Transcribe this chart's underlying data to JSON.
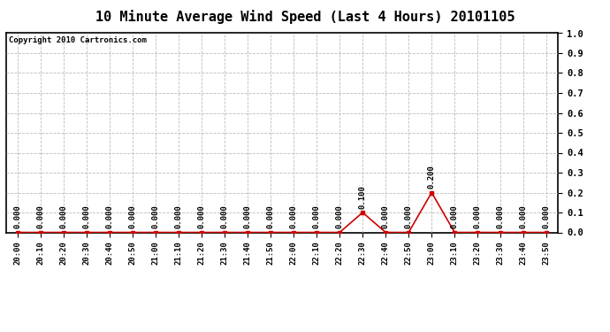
{
  "title": "10 Minute Average Wind Speed (Last 4 Hours) 20101105",
  "copyright_text": "Copyright 2010 Cartronics.com",
  "x_labels": [
    "20:00",
    "20:10",
    "20:20",
    "20:30",
    "20:40",
    "20:50",
    "21:00",
    "21:10",
    "21:20",
    "21:30",
    "21:40",
    "21:50",
    "22:00",
    "22:10",
    "22:20",
    "22:30",
    "22:40",
    "22:50",
    "23:00",
    "23:10",
    "23:20",
    "23:30",
    "23:40",
    "23:50"
  ],
  "y_values": [
    0.0,
    0.0,
    0.0,
    0.0,
    0.0,
    0.0,
    0.0,
    0.0,
    0.0,
    0.0,
    0.0,
    0.0,
    0.0,
    0.0,
    0.0,
    0.1,
    0.0,
    0.0,
    0.2,
    0.0,
    0.0,
    0.0,
    0.0,
    0.0
  ],
  "line_color": "#cc0000",
  "marker_color": "#cc0000",
  "marker_style": "s",
  "marker_size": 2.5,
  "ylim": [
    0.0,
    1.0
  ],
  "yticks": [
    0.0,
    0.1,
    0.2,
    0.3,
    0.4,
    0.5,
    0.6,
    0.7,
    0.8,
    0.9,
    1.0
  ],
  "ytick_labels": [
    "0.0",
    "0.1",
    "0.2",
    "0.3",
    "0.4",
    "0.5",
    "0.6",
    "0.7",
    "0.8",
    "0.9",
    "1.0"
  ],
  "background_color": "#ffffff",
  "plot_bg_color": "#ffffff",
  "grid_color": "#bbbbbb",
  "grid_style": "--",
  "title_fontsize": 11,
  "copyright_fontsize": 6.5,
  "annotation_fontsize": 6.5,
  "tick_fontsize": 6.5,
  "ytick_fontsize": 7.5
}
